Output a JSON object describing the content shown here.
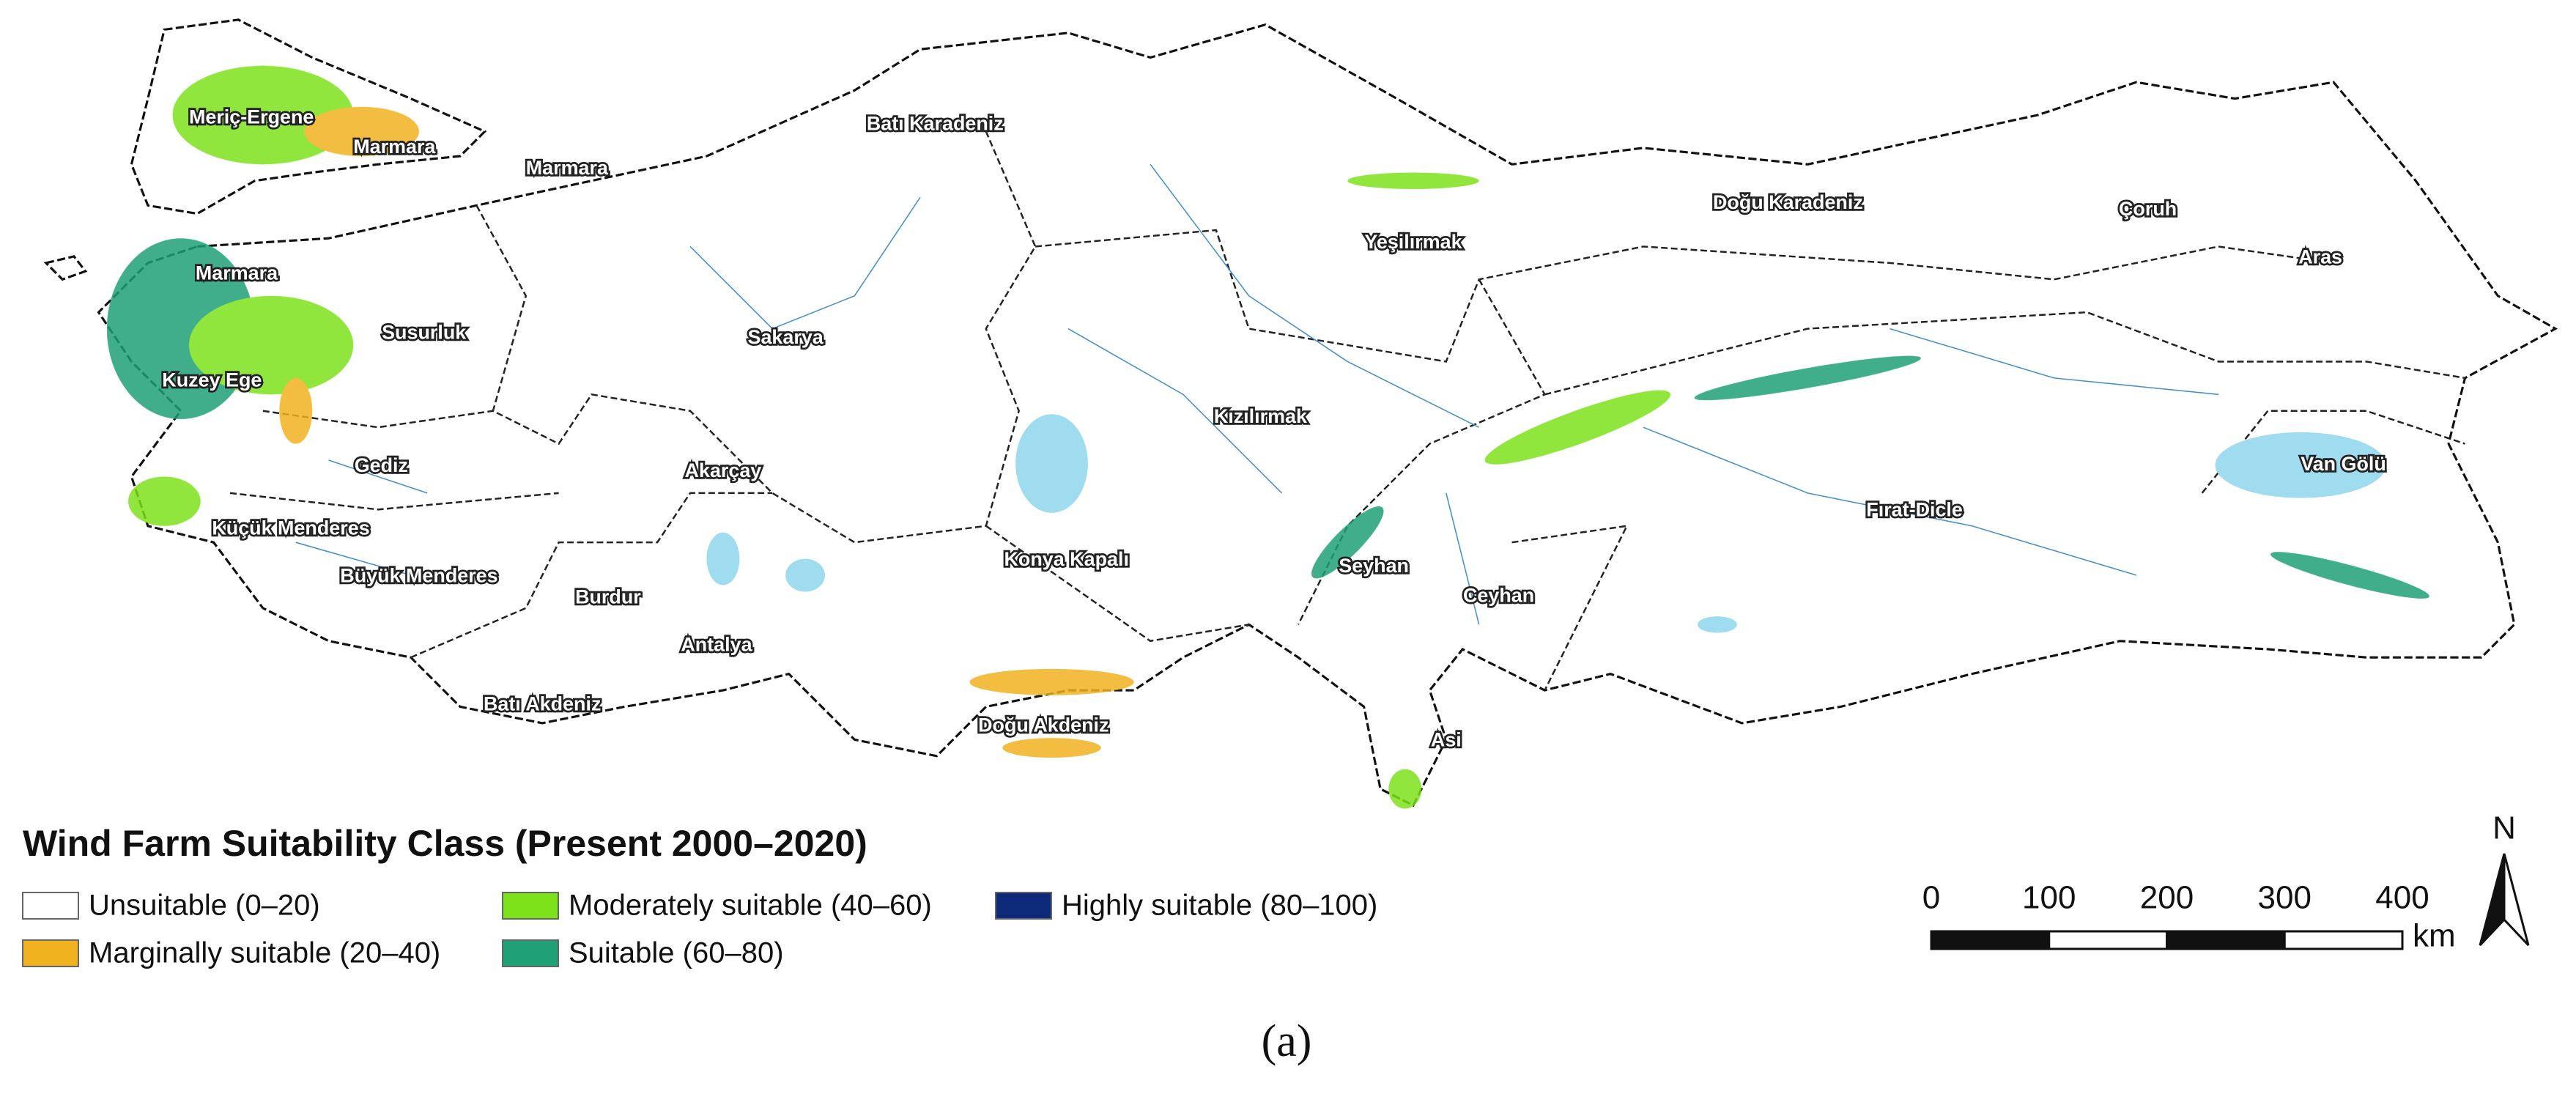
{
  "map": {
    "regions": [
      "Meriç-Ergene",
      "Marmara",
      "Marmara",
      "Marmara",
      "Batı Karadeniz",
      "Doğu Karadeniz",
      "Çoruh",
      "Aras",
      "Yeşilırmak",
      "Susurluk",
      "Sakarya",
      "Kuzey Ege",
      "Kızılırmak",
      "Gediz",
      "Akarçay",
      "Van Gölü",
      "Küçük Menderes",
      "Fırat-Dicle",
      "Konya Kapalı",
      "Seyhan",
      "Büyük Menderes",
      "Burdur",
      "Ceyhan",
      "Antalya",
      "Batı Akdeniz",
      "Doğu Akdeniz",
      "Asi"
    ],
    "legend": {
      "title": "Wind Farm Suitability Class (Present 2000–2020)",
      "items": [
        {
          "label": "Unsuitable (0–20)",
          "color": "#ffffff"
        },
        {
          "label": "Marginally suitable (20–40)",
          "color": "#f0b21e"
        },
        {
          "label": "Moderately suitable (40–60)",
          "color": "#7ee21a"
        },
        {
          "label": "Suitable (60–80)",
          "color": "#1fa077"
        },
        {
          "label": "Highly suitable (80–100)",
          "color": "#0d2a7a"
        }
      ]
    },
    "scale_bar": {
      "ticks": [
        0,
        100,
        200,
        300,
        400
      ],
      "unit": "km"
    },
    "north": "N",
    "caption": "(a)"
  }
}
